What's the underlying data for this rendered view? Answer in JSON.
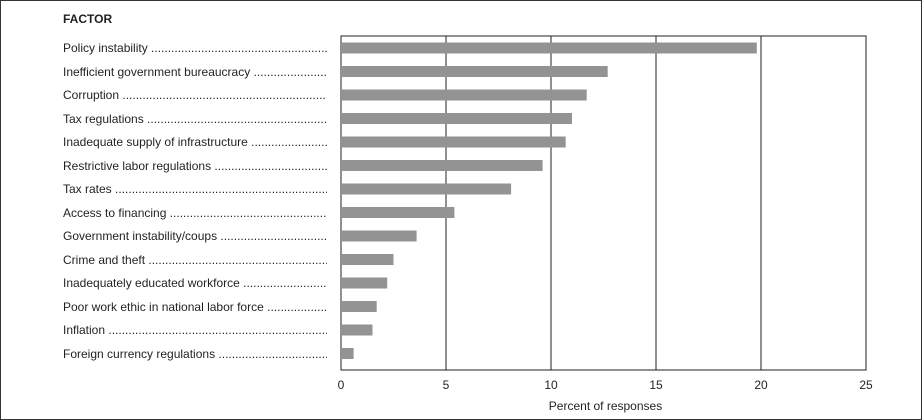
{
  "chart_data": {
    "type": "bar",
    "orientation": "horizontal",
    "title": "",
    "category_heading": "FACTOR",
    "xlabel": "Percent of responses",
    "xlim": [
      0,
      25
    ],
    "xticks": [
      0,
      5,
      10,
      15,
      20,
      25
    ],
    "grid": true,
    "bar_color": "#939393",
    "categories": [
      "Policy instability",
      "Inefficient government bureaucracy",
      "Corruption",
      "Tax regulations",
      "Inadequate supply of infrastructure",
      "Restrictive labor regulations",
      "Tax rates",
      "Access to financing",
      "Government instability/coups",
      "Crime and theft",
      "Inadequately educated workforce",
      "Poor work ethic in national labor force",
      "Inflation",
      "Foreign currency regulations"
    ],
    "values": [
      19.8,
      12.7,
      11.7,
      11.0,
      10.7,
      9.6,
      8.1,
      5.4,
      3.6,
      2.5,
      2.2,
      1.7,
      1.5,
      0.6
    ]
  }
}
